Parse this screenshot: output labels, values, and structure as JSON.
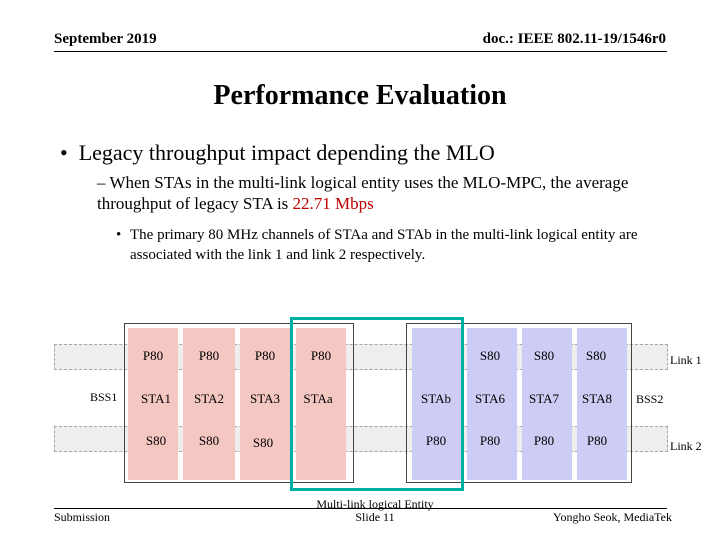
{
  "header": {
    "date": "September 2019",
    "doc": "doc.: IEEE 802.11-19/1546r0"
  },
  "title": "Performance Evaluation",
  "bullet1": "Legacy throughput impact depending the MLO",
  "bullet2": {
    "dash": "–",
    "text": "When STAs in the multi-link logical entity uses the MLO-MPC, the average throughput of legacy STA is",
    "value": "22.71 Mbps"
  },
  "bullet3": "The primary 80 MHz channels of STAa and STAb in the multi-link logical entity are associated with the link 1 and link 2 respectively.",
  "diagram": {
    "link1_label": "Link 1",
    "link2_label": "Link 2",
    "bss1_label": "BSS1",
    "bss2_label": "BSS2",
    "mle_label": "Multi-link logical Entity",
    "bss1_columns": [
      {
        "top": "P80",
        "sta": "STA1",
        "bottom": "S80"
      },
      {
        "top": "P80",
        "sta": "STA2",
        "bottom": "S80"
      },
      {
        "top": "P80",
        "sta": "STA3",
        "bottom": "S80"
      },
      {
        "top": "P80",
        "sta": "STAa",
        "bottom": ""
      }
    ],
    "bss2_columns": [
      {
        "top": "",
        "sta": "STAb",
        "bottom": "P80"
      },
      {
        "top": "S80",
        "sta": "STA6",
        "bottom": "P80"
      },
      {
        "top": "S80",
        "sta": "STA7",
        "bottom": "P80"
      },
      {
        "top": "S80",
        "sta": "STA8",
        "bottom": "P80"
      }
    ],
    "colors": {
      "bss1_fill": "#f4c7c3",
      "bss2_fill": "#ccccf4",
      "mle_border": "#00b0a0",
      "band_fill": "#eeeeee",
      "highlight_text": "#c00000"
    }
  },
  "footer": {
    "left": "Submission",
    "center": "Slide 11",
    "right": "Yongho Seok, MediaTek"
  }
}
